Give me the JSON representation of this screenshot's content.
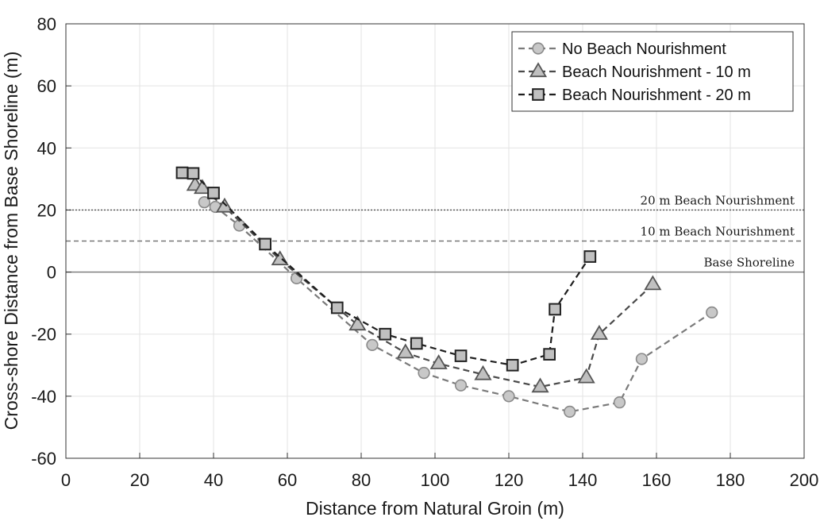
{
  "chart_data": {
    "type": "scatter",
    "xlabel": "Distance from Natural Groin (m)",
    "ylabel": "Cross-shore Distance from Base Shoreline (m)",
    "xlim": [
      0,
      200
    ],
    "ylim": [
      -60,
      80
    ],
    "xticks": [
      0,
      20,
      40,
      60,
      80,
      100,
      120,
      140,
      160,
      180,
      200
    ],
    "yticks": [
      -60,
      -40,
      -20,
      0,
      20,
      40,
      60,
      80
    ],
    "grid": true,
    "legend_position": "top-right",
    "reference_lines": [
      {
        "label": "20 m Beach Nourishment",
        "y": 20,
        "style": "dotted",
        "color": "#555555"
      },
      {
        "label": "10 m Beach Nourishment",
        "y": 10,
        "style": "dashed",
        "color": "#777777"
      },
      {
        "label": "Base Shoreline",
        "y": 0,
        "style": "solid",
        "color": "#777777"
      }
    ],
    "series": [
      {
        "name": "No Beach Nourishment",
        "marker": "circle",
        "line_color": "#7a7a7a",
        "marker_fill": "#c8c8c8",
        "marker_stroke": "#8a8a8a",
        "points": [
          [
            37.5,
            22.5
          ],
          [
            40.5,
            21
          ],
          [
            47,
            15
          ],
          [
            62.5,
            -2
          ],
          [
            83,
            -23.5
          ],
          [
            97,
            -32.5
          ],
          [
            107,
            -36.5
          ],
          [
            120,
            -40
          ],
          [
            136.5,
            -45
          ],
          [
            150,
            -42
          ],
          [
            156,
            -28
          ],
          [
            175,
            -13
          ]
        ]
      },
      {
        "name": "Beach Nourishment - 10 m",
        "marker": "triangle",
        "line_color": "#4a4a4a",
        "marker_fill": "#c0c0c0",
        "marker_stroke": "#555555",
        "points": [
          [
            35,
            28
          ],
          [
            37,
            27
          ],
          [
            43,
            21
          ],
          [
            58,
            4
          ],
          [
            79,
            -17
          ],
          [
            92,
            -26
          ],
          [
            101,
            -29.5
          ],
          [
            113,
            -33
          ],
          [
            128.5,
            -37
          ],
          [
            141,
            -34
          ],
          [
            144.5,
            -20
          ],
          [
            159,
            -4
          ]
        ]
      },
      {
        "name": "Beach Nourishment - 20 m",
        "marker": "square",
        "line_color": "#1e1e1e",
        "marker_fill": "#c0c0c0",
        "marker_stroke": "#222222",
        "points": [
          [
            31.5,
            32
          ],
          [
            34.5,
            31.8
          ],
          [
            40,
            25.5
          ],
          [
            54,
            9
          ],
          [
            73.5,
            -11.5
          ],
          [
            86.5,
            -20
          ],
          [
            95,
            -23
          ],
          [
            107,
            -27
          ],
          [
            121,
            -30
          ],
          [
            131,
            -26.5
          ],
          [
            132.5,
            -12
          ],
          [
            142,
            5
          ]
        ]
      }
    ]
  }
}
